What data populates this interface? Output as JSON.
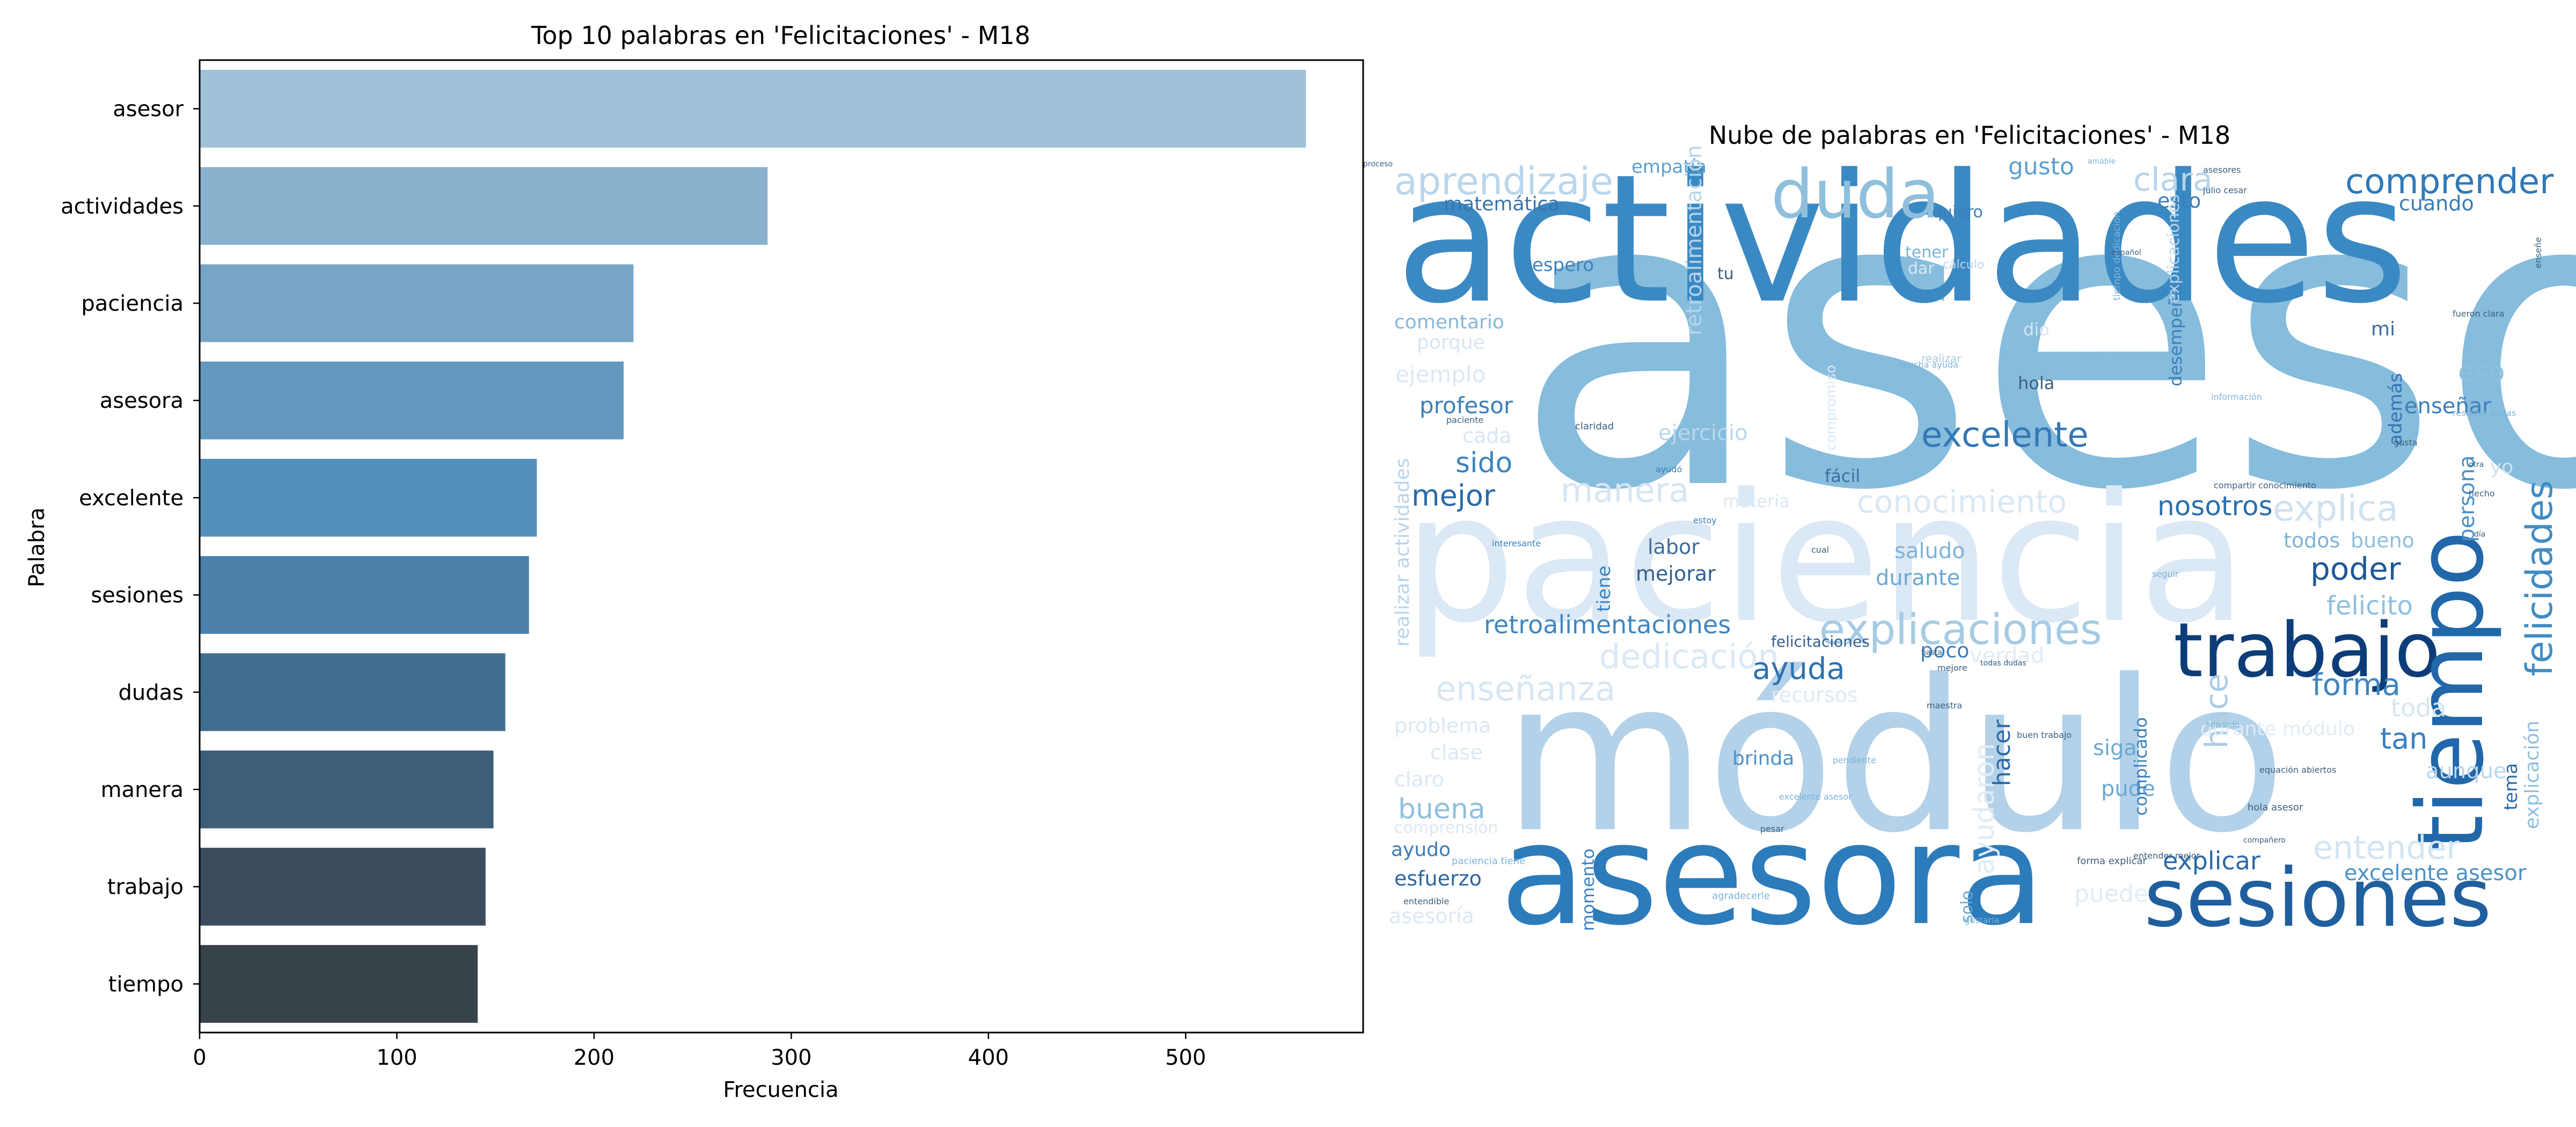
{
  "chart_data": [
    {
      "type": "bar",
      "orientation": "horizontal",
      "title": "Top 10 palabras en 'Felicitaciones' - M18",
      "xlabel": "Frecuencia",
      "ylabel": "Palabra",
      "xlim": [
        0,
        590
      ],
      "xticks": [
        "0",
        "100",
        "200",
        "300",
        "400",
        "500"
      ],
      "grid": false,
      "categories": [
        "asesor",
        "actividades",
        "paciencia",
        "asesora",
        "excelente",
        "sesiones",
        "dudas",
        "manera",
        "trabajo",
        "tiempo"
      ],
      "values": [
        561,
        288,
        220,
        215,
        171,
        167,
        155,
        149,
        145,
        141
      ],
      "colors": [
        "#a0c1d8",
        "#8ab2ce",
        "#78a5c6",
        "#6399c0",
        "#5590bc",
        "#4a80aa",
        "#416e90",
        "#3e5d77",
        "#3a4c5e",
        "#384349"
      ]
    },
    {
      "type": "wordcloud",
      "title": "Nube de palabras en 'Felicitaciones' - M18",
      "colormap": "Blues",
      "words": [
        {
          "text": "asesor",
          "c": "#86bcdc"
        },
        {
          "text": "actividades",
          "c": "#3b89c3"
        },
        {
          "text": "paciencia",
          "c": "#dbe8f5"
        },
        {
          "text": "módulo",
          "c": "#b3d1e8"
        },
        {
          "text": "asesora",
          "c": "#2c7bbb"
        },
        {
          "text": "sesiones",
          "c": "#1f5f9e"
        },
        {
          "text": "trabajo",
          "c": "#0c3d78"
        },
        {
          "text": "tiempo",
          "c": "#2167a9"
        },
        {
          "text": "duda",
          "c": "#8fbfdd"
        },
        {
          "text": "explicaciones",
          "c": "#a6cbe4"
        },
        {
          "text": "felicidades",
          "c": "#3f8cc5"
        },
        {
          "text": "aprendizaje",
          "c": "#b9d6ec"
        },
        {
          "text": "comprender",
          "c": "#2f79b6"
        },
        {
          "text": "excelente",
          "c": "#3478b5"
        },
        {
          "text": "conocimiento",
          "c": "#dae8f4"
        },
        {
          "text": "dedicación",
          "c": "#dbe8f5"
        },
        {
          "text": "retroalimentaciones",
          "c": "#3f86c0"
        },
        {
          "text": "explica",
          "c": "#cfe1f1"
        },
        {
          "text": "enseñanza",
          "c": "#d7e6f3"
        },
        {
          "text": "manera",
          "c": "#d6e6f3"
        },
        {
          "text": "nosotros",
          "c": "#2c6fae"
        },
        {
          "text": "ayuda",
          "c": "#2f72ae"
        },
        {
          "text": "forma",
          "c": "#3f86c0"
        },
        {
          "text": "poder",
          "c": "#1e5899"
        },
        {
          "text": "mejor",
          "c": "#2a6aa8"
        },
        {
          "text": "sido",
          "c": "#3c84bf"
        },
        {
          "text": "entender",
          "c": "#d3e4f2"
        },
        {
          "text": "explicar",
          "c": "#2a6aa8"
        },
        {
          "text": "excelente asesor",
          "c": "#4b92c8"
        },
        {
          "text": "clara",
          "c": "#b7d4ea"
        },
        {
          "text": "gusto",
          "c": "#5b9fcf"
        },
        {
          "text": "felicito",
          "c": "#8ec0de"
        },
        {
          "text": "tan",
          "c": "#3a80bd"
        },
        {
          "text": "buena",
          "c": "#8fbfdd"
        },
        {
          "text": "hace",
          "c": "#aacde6"
        },
        {
          "text": "profesor",
          "c": "#3b7fbb"
        },
        {
          "text": "mejorar",
          "c": "#2f5f91"
        },
        {
          "text": "labor",
          "c": "#3d6e9c"
        },
        {
          "text": "saludo",
          "c": "#7db3d9"
        },
        {
          "text": "durante",
          "c": "#6aa8d3"
        },
        {
          "text": "ayudaron",
          "c": "#e0ecf6"
        },
        {
          "text": "esfuerzo",
          "c": "#2967a6"
        },
        {
          "text": "momento",
          "c": "#3c82bf"
        },
        {
          "text": "hacer",
          "c": "#2d6aa8"
        },
        {
          "text": "siga",
          "c": "#6aa8d3"
        },
        {
          "text": "pude",
          "c": "#6aa8d3"
        },
        {
          "text": "brinda",
          "c": "#4d91c7"
        },
        {
          "text": "todos",
          "c": "#7db3d9"
        },
        {
          "text": "bueno",
          "c": "#8fbfdd"
        },
        {
          "text": "esto",
          "c": "#3b7fbb"
        },
        {
          "text": "cuando",
          "c": "#3a7cb7"
        },
        {
          "text": "eso",
          "c": "#90c0de"
        },
        {
          "text": "enseñar",
          "c": "#3b7fbb"
        },
        {
          "text": "persona",
          "c": "#4a8fc6"
        },
        {
          "text": "además",
          "c": "#3375b2"
        },
        {
          "text": "tema",
          "c": "#2c6aa8"
        },
        {
          "text": "aunque",
          "c": "#b9d6ec"
        },
        {
          "text": "toda",
          "c": "#d7e6f3"
        },
        {
          "text": "verdad",
          "c": "#e0ecf6"
        },
        {
          "text": "poco",
          "c": "#3b7fbb"
        },
        {
          "text": "recursos",
          "c": "#dde9f5"
        },
        {
          "text": "problema",
          "c": "#dae8f4"
        },
        {
          "text": "clase",
          "c": "#dbe8f5"
        },
        {
          "text": "claro",
          "c": "#dbe8f5"
        },
        {
          "text": "comprensión",
          "c": "#dbe8f5"
        },
        {
          "text": "ayudo",
          "c": "#3c7cb7"
        },
        {
          "text": "asesoría",
          "c": "#dbe8f5"
        },
        {
          "text": "solo",
          "c": "#6aa8d3"
        },
        {
          "text": "puede",
          "c": "#e0ecf6"
        },
        {
          "text": "complicado",
          "c": "#3b7fbb"
        },
        {
          "text": "durante módulo",
          "c": "#e0ecf6"
        },
        {
          "text": "fácil",
          "c": "#3a6f9f"
        },
        {
          "text": "hola",
          "c": "#3b5f7f"
        },
        {
          "text": "ejercicio",
          "c": "#bad6ea"
        },
        {
          "text": "cada",
          "c": "#d7e6f3"
        },
        {
          "text": "desempeño",
          "c": "#3b7fbb"
        },
        {
          "text": "tiene",
          "c": "#3c82bf"
        },
        {
          "text": "matemática",
          "c": "#3a73a9"
        },
        {
          "text": "empatía",
          "c": "#5e9fcf"
        },
        {
          "text": "espero",
          "c": "#3b82bf"
        },
        {
          "text": "comentario",
          "c": "#85b8da"
        },
        {
          "text": "porque",
          "c": "#d7e6f3"
        },
        {
          "text": "ejemplo",
          "c": "#dbe8f5"
        },
        {
          "text": "quiero",
          "c": "#3b7fbb"
        },
        {
          "text": "tener",
          "c": "#7db3d9"
        },
        {
          "text": "dar",
          "c": "#dbe8f5"
        },
        {
          "text": "tu",
          "c": "#3b5f7f"
        },
        {
          "text": "mi",
          "c": "#3b6a99"
        },
        {
          "text": "yo",
          "c": "#cfe1f1"
        },
        {
          "text": "dio",
          "c": "#d7e6f3"
        },
        {
          "text": "retroalimentación",
          "c": "#b7d4ea"
        },
        {
          "text": "realizar actividades",
          "c": "#b7d4ea"
        },
        {
          "text": "felicitaciones",
          "c": "#2f5f91"
        },
        {
          "text": "explicación",
          "c": "#8fbfdd"
        },
        {
          "text": "compromiso",
          "c": "#dbe8f5"
        },
        {
          "text": "cálculo",
          "c": "#bad6ea"
        },
        {
          "text": "tiempo dedicación",
          "c": "#7db3d9"
        },
        {
          "text": "explicaciones",
          "c": "#bad6ea"
        },
        {
          "text": "mucha ayuda",
          "c": "#7db3d9"
        },
        {
          "text": "realizar",
          "c": "#a6cbe4"
        },
        {
          "text": "claridad",
          "c": "#3b5f7f"
        },
        {
          "text": "paciente",
          "c": "#3b5f7f"
        },
        {
          "text": "ayudó",
          "c": "#3b7fbb"
        },
        {
          "text": "materia",
          "c": "#dbe8f5"
        },
        {
          "text": "estoy",
          "c": "#3b7fbb"
        },
        {
          "text": "cual",
          "c": "#3b5f7f"
        },
        {
          "text": "interesante",
          "c": "#3b7fbb"
        },
        {
          "text": "buen trabajo",
          "c": "#3b5f7f"
        },
        {
          "text": "maestra",
          "c": "#3b5f7f"
        },
        {
          "text": "agradecerle",
          "c": "#7db3d9"
        },
        {
          "text": "pendiente",
          "c": "#7db3d9"
        },
        {
          "text": "entendible",
          "c": "#3b5f7f"
        },
        {
          "text": "paciencia tiene",
          "c": "#7db3d9"
        },
        {
          "text": "pesar",
          "c": "#3b5f7f"
        },
        {
          "text": "gustaría",
          "c": "#7db3d9"
        },
        {
          "text": "forma explicar",
          "c": "#3b5f7f"
        },
        {
          "text": "entender mejor",
          "c": "#3b5f7f"
        },
        {
          "text": "hola asesor",
          "c": "#3b5f7f"
        },
        {
          "text": "compartir conocimiento",
          "c": "#3b5f7f"
        },
        {
          "text": "resolver dudas",
          "c": "#7db3d9"
        },
        {
          "text": "excelente asesor",
          "c": "#7db3d9"
        },
        {
          "text": "todas dudas",
          "c": "#3b5f7f"
        },
        {
          "text": "mejore",
          "c": "#3b5f7f"
        },
        {
          "text": "hasta",
          "c": "#3b5f7f"
        },
        {
          "text": "brindado",
          "c": "#7db3d9"
        },
        {
          "text": "equación abiertos",
          "c": "#3b5f7f"
        },
        {
          "text": "compañero",
          "c": "#3b5f7f"
        },
        {
          "text": "fueron clara",
          "c": "#3b5f7f"
        },
        {
          "text": "julio cesar",
          "c": "#3b5f7f"
        },
        {
          "text": "asesores",
          "c": "#3b5f7f"
        },
        {
          "text": "amable",
          "c": "#7db3d9"
        },
        {
          "text": "proceso",
          "c": "#3b5f7f"
        },
        {
          "text": "información",
          "c": "#7db3d9"
        },
        {
          "text": "seguir",
          "c": "#7db3d9"
        },
        {
          "text": "gusta",
          "c": "#3b5f7f"
        },
        {
          "text": "otra",
          "c": "#3b5f7f"
        },
        {
          "text": "hecho",
          "c": "#3b5f7f"
        },
        {
          "text": "día",
          "c": "#3b5f7f"
        },
        {
          "text": "español",
          "c": "#3b5f7f"
        },
        {
          "text": "enseñe",
          "c": "#3b5f7f"
        }
      ]
    }
  ]
}
